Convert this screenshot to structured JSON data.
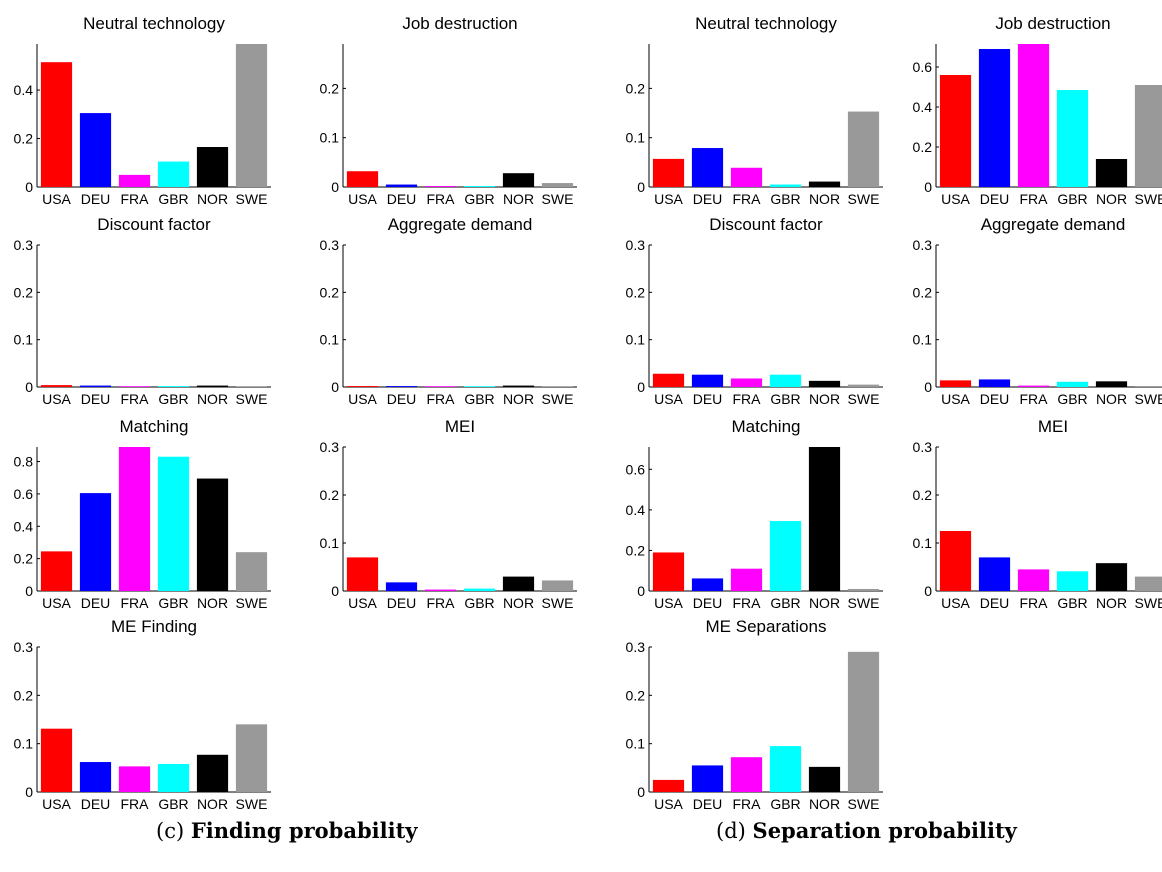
{
  "colors": {
    "USA": "#ff0000",
    "DEU": "#0000ff",
    "FRA": "#ff00ff",
    "GBR": "#00ffff",
    "NOR": "#000000",
    "SWE": "#999999"
  },
  "captions": [
    {
      "label": "(c)",
      "title": "Finding probability"
    },
    {
      "label": "(d)",
      "title": "Separation probability"
    }
  ],
  "chart_data": [
    {
      "type": "bar",
      "panel": "c",
      "title": "Neutral technology",
      "categories": [
        "USA",
        "DEU",
        "FRA",
        "GBR",
        "NOR",
        "SWE"
      ],
      "values": [
        0.515,
        0.305,
        0.05,
        0.105,
        0.165,
        0.59
      ],
      "ylim": [
        0,
        0.59
      ],
      "yticks": [
        0,
        0.2,
        0.4
      ],
      "ytick_labels": [
        "0",
        "0.2",
        "0.4"
      ]
    },
    {
      "type": "bar",
      "panel": "c",
      "title": "Job destruction",
      "categories": [
        "USA",
        "DEU",
        "FRA",
        "GBR",
        "NOR",
        "SWE"
      ],
      "values": [
        0.032,
        0.005,
        0.002,
        0.002,
        0.028,
        0.008
      ],
      "ylim": [
        0,
        0.29
      ],
      "yticks": [
        0,
        0.1,
        0.2
      ],
      "ytick_labels": [
        "0",
        "0.1",
        "0.2"
      ]
    },
    {
      "type": "bar",
      "panel": "d",
      "title": "Neutral technology",
      "categories": [
        "USA",
        "DEU",
        "FRA",
        "GBR",
        "NOR",
        "SWE"
      ],
      "values": [
        0.057,
        0.079,
        0.039,
        0.005,
        0.011,
        0.153
      ],
      "ylim": [
        0,
        0.29
      ],
      "yticks": [
        0,
        0.1,
        0.2
      ],
      "ytick_labels": [
        "0",
        "0.1",
        "0.2"
      ]
    },
    {
      "type": "bar",
      "panel": "d",
      "title": "Job destruction",
      "categories": [
        "USA",
        "DEU",
        "FRA",
        "GBR",
        "NOR",
        "SWE"
      ],
      "values": [
        0.56,
        0.69,
        0.715,
        0.485,
        0.14,
        0.51
      ],
      "ylim": [
        0,
        0.715
      ],
      "yticks": [
        0,
        0.2,
        0.4,
        0.6
      ],
      "ytick_labels": [
        "0",
        "0.2",
        "0.4",
        "0.6"
      ]
    },
    {
      "type": "bar",
      "panel": "c",
      "title": "Discount factor",
      "categories": [
        "USA",
        "DEU",
        "FRA",
        "GBR",
        "NOR",
        "SWE"
      ],
      "values": [
        0.004,
        0.003,
        0.001,
        0.002,
        0.003,
        0.001
      ],
      "ylim": [
        0,
        0.3
      ],
      "yticks": [
        0,
        0.1,
        0.2,
        0.3
      ],
      "ytick_labels": [
        "0",
        "0.1",
        "0.2",
        "0.3"
      ]
    },
    {
      "type": "bar",
      "panel": "c",
      "title": "Aggregate demand",
      "categories": [
        "USA",
        "DEU",
        "FRA",
        "GBR",
        "NOR",
        "SWE"
      ],
      "values": [
        0.002,
        0.002,
        0.001,
        0.001,
        0.003,
        0.001
      ],
      "ylim": [
        0,
        0.3
      ],
      "yticks": [
        0,
        0.1,
        0.2,
        0.3
      ],
      "ytick_labels": [
        "0",
        "0.1",
        "0.2",
        "0.3"
      ]
    },
    {
      "type": "bar",
      "panel": "d",
      "title": "Discount factor",
      "categories": [
        "USA",
        "DEU",
        "FRA",
        "GBR",
        "NOR",
        "SWE"
      ],
      "values": [
        0.028,
        0.026,
        0.018,
        0.026,
        0.013,
        0.005
      ],
      "ylim": [
        0,
        0.3
      ],
      "yticks": [
        0,
        0.1,
        0.2,
        0.3
      ],
      "ytick_labels": [
        "0",
        "0.1",
        "0.2",
        "0.3"
      ]
    },
    {
      "type": "bar",
      "panel": "d",
      "title": "Aggregate demand",
      "categories": [
        "USA",
        "DEU",
        "FRA",
        "GBR",
        "NOR",
        "SWE"
      ],
      "values": [
        0.014,
        0.016,
        0.003,
        0.011,
        0.012,
        0.002
      ],
      "ylim": [
        0,
        0.3
      ],
      "yticks": [
        0,
        0.1,
        0.2,
        0.3
      ],
      "ytick_labels": [
        "0",
        "0.1",
        "0.2",
        "0.3"
      ]
    },
    {
      "type": "bar",
      "panel": "c",
      "title": "Matching",
      "categories": [
        "USA",
        "DEU",
        "FRA",
        "GBR",
        "NOR",
        "SWE"
      ],
      "values": [
        0.245,
        0.605,
        0.89,
        0.83,
        0.695,
        0.24
      ],
      "ylim": [
        0,
        0.89
      ],
      "yticks": [
        0,
        0.2,
        0.4,
        0.6,
        0.8
      ],
      "ytick_labels": [
        "0",
        "0.2",
        "0.4",
        "0.6",
        "0.8"
      ]
    },
    {
      "type": "bar",
      "panel": "c",
      "title": "MEI",
      "categories": [
        "USA",
        "DEU",
        "FRA",
        "GBR",
        "NOR",
        "SWE"
      ],
      "values": [
        0.07,
        0.018,
        0.003,
        0.005,
        0.03,
        0.022
      ],
      "ylim": [
        0,
        0.3
      ],
      "yticks": [
        0,
        0.1,
        0.2,
        0.3
      ],
      "ytick_labels": [
        "0",
        "0.1",
        "0.2",
        "0.3"
      ]
    },
    {
      "type": "bar",
      "panel": "d",
      "title": "Matching",
      "categories": [
        "USA",
        "DEU",
        "FRA",
        "GBR",
        "NOR",
        "SWE"
      ],
      "values": [
        0.19,
        0.062,
        0.11,
        0.345,
        0.71,
        0.01
      ],
      "ylim": [
        0,
        0.71
      ],
      "yticks": [
        0,
        0.2,
        0.4,
        0.6
      ],
      "ytick_labels": [
        "0",
        "0.2",
        "0.4",
        "0.6"
      ]
    },
    {
      "type": "bar",
      "panel": "d",
      "title": "MEI",
      "categories": [
        "USA",
        "DEU",
        "FRA",
        "GBR",
        "NOR",
        "SWE"
      ],
      "values": [
        0.125,
        0.07,
        0.045,
        0.041,
        0.058,
        0.03
      ],
      "ylim": [
        0,
        0.3
      ],
      "yticks": [
        0,
        0.1,
        0.2,
        0.3
      ],
      "ytick_labels": [
        "0",
        "0.1",
        "0.2",
        "0.3"
      ]
    },
    {
      "type": "bar",
      "panel": "c",
      "title": "ME Finding",
      "categories": [
        "USA",
        "DEU",
        "FRA",
        "GBR",
        "NOR",
        "SWE"
      ],
      "values": [
        0.131,
        0.062,
        0.053,
        0.058,
        0.077,
        0.14
      ],
      "ylim": [
        0,
        0.3
      ],
      "yticks": [
        0,
        0.1,
        0.2,
        0.3
      ],
      "ytick_labels": [
        "0",
        "0.1",
        "0.2",
        "0.3"
      ]
    },
    {
      "type": "bar",
      "panel": "d",
      "title": "ME Separations",
      "categories": [
        "USA",
        "DEU",
        "FRA",
        "GBR",
        "NOR",
        "SWE"
      ],
      "values": [
        0.025,
        0.055,
        0.072,
        0.095,
        0.052,
        0.29
      ],
      "ylim": [
        0,
        0.3
      ],
      "yticks": [
        0,
        0.1,
        0.2,
        0.3
      ],
      "ytick_labels": [
        "0",
        "0.1",
        "0.2",
        "0.3"
      ]
    }
  ]
}
